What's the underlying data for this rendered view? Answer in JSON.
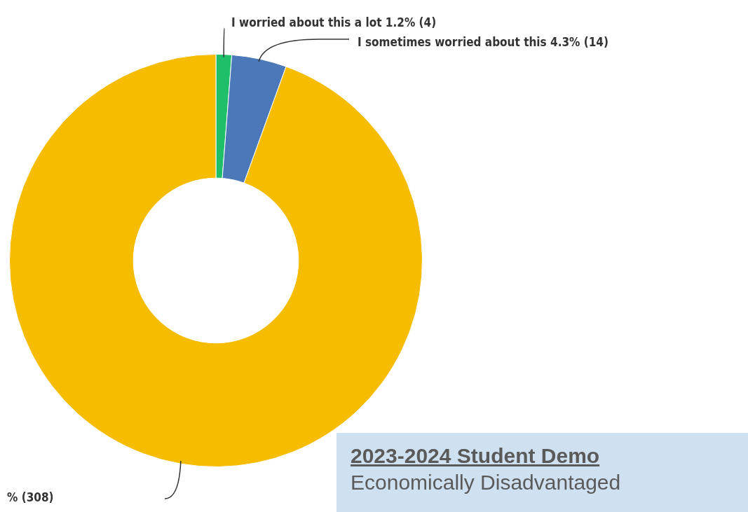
{
  "chart_data": {
    "type": "donut",
    "categories": [
      "I worried about this a lot",
      "I sometimes worried about this",
      null
    ],
    "values": [
      4,
      14,
      308
    ],
    "colors": [
      "#1fbf6a",
      "#4a78b8",
      "#f5bc00"
    ],
    "value_labels": [
      "1.2% (4)",
      "4.3% (14)",
      "% (308)"
    ],
    "legend": false,
    "annotations": [
      "2023-2024 Student Demo",
      "Economically Disadvantaged"
    ]
  }
}
